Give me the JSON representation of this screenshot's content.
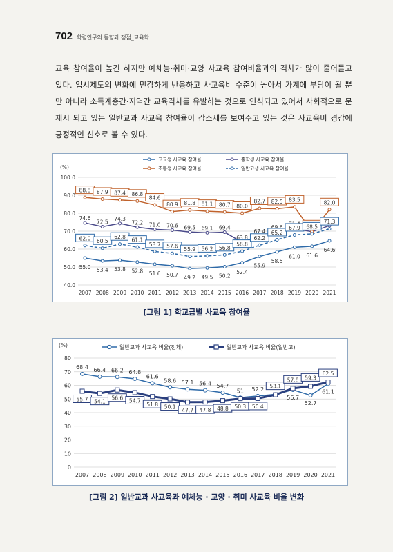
{
  "header": {
    "page_number": "702",
    "running_title": "학령인구의 동향과 쟁점_교육학"
  },
  "body_text": "교육 참여율이 높긴 하지만 예체능·취미·교양 사교육 참여비율과의 격차가 많이 줄어들고 있다. 입시제도의 변화에 민감하게 반응하고 사교육비 수준이 높아서 가계에 부담이 될 뿐만 아니라 소득계층간·지역간 교육격차를 유발하는 것으로 인식되고 있어서 사회적으로 문제시 되고 있는 일반교과 사교육 참여율이 감소세를 보여주고 있는 것은 사교육비 경감에 긍정적인 신호로 볼 수 있다.",
  "captions": {
    "fig1": "[그림 1] 학교급별 사교육 참여율",
    "fig2": "[그림 2] 일반교과 사교육과 예체능 · 교양 · 취미 사교육 비율 변화"
  },
  "chart_data": [
    {
      "type": "line",
      "ylabel": "(%)",
      "ylim": [
        40,
        100
      ],
      "yticks": [
        "100.0",
        "90.0",
        "80.0",
        "70.0",
        "60.0",
        "50.0",
        "40.0"
      ],
      "grid": true,
      "legend": "top",
      "categories": [
        "2007",
        "2008",
        "2009",
        "2010",
        "2011",
        "2012",
        "2013",
        "2014",
        "2015",
        "2016",
        "2017",
        "2018",
        "2019",
        "2020",
        "2021"
      ],
      "series": [
        {
          "name": "고교생 사교육 참여율",
          "color": "#2e6aa8",
          "style": "solid",
          "boxed": false,
          "values": [
            55.0,
            53.4,
            53.8,
            52.8,
            51.6,
            50.7,
            49.2,
            49.5,
            50.2,
            52.4,
            55.9,
            58.5,
            61.0,
            61.6,
            64.6
          ]
        },
        {
          "name": "중학생 사교육 참여율",
          "color": "#4a4a8a",
          "style": "solid",
          "boxed": false,
          "values": [
            74.6,
            72.5,
            74.3,
            72.2,
            71.0,
            70.6,
            69.5,
            69.1,
            69.4,
            63.8,
            67.4,
            69.6,
            71.4,
            69.7,
            73.1
          ]
        },
        {
          "name": "초등생 사교육 참여율",
          "color": "#c0622c",
          "style": "solid",
          "boxed": true,
          "values": [
            88.8,
            87.9,
            87.4,
            86.8,
            84.6,
            80.9,
            81.8,
            81.1,
            80.7,
            80.0,
            82.7,
            82.5,
            83.5,
            69.7,
            82.0
          ]
        },
        {
          "name": "일반고생 사교육 참여율",
          "color": "#2e6aa8",
          "style": "dashed",
          "boxed": true,
          "values": [
            62.0,
            60.5,
            62.8,
            61.1,
            58.7,
            57.6,
            55.9,
            56.2,
            56.8,
            58.8,
            62.2,
            65.2,
            67.9,
            68.5,
            71.3
          ]
        }
      ]
    },
    {
      "type": "line",
      "ylabel": "(%)",
      "ylim": [
        0,
        80
      ],
      "yticks": [
        "80",
        "70",
        "60",
        "50",
        "40",
        "30",
        "20",
        "10",
        "0"
      ],
      "grid": true,
      "legend": "top",
      "categories": [
        "2007",
        "2008",
        "2009",
        "2010",
        "2011",
        "2012",
        "2013",
        "2014",
        "2015",
        "2016",
        "2017",
        "2018",
        "2019",
        "2020",
        "2021"
      ],
      "series": [
        {
          "name": "일반교과 사교육 비율(전체)",
          "color": "#2e6aa8",
          "marker": "circle",
          "boxed": false,
          "values": [
            68.4,
            66.4,
            66.2,
            64.8,
            61.6,
            58.6,
            57.1,
            56.4,
            54.7,
            51,
            52.2,
            53.4,
            56.7,
            52.7,
            61.1
          ]
        },
        {
          "name": "일반교과 사교육 비율(일반고)",
          "color": "#2a3f7e",
          "marker": "square",
          "boxed": true,
          "values": [
            55.7,
            54.1,
            56.6,
            54.7,
            51.8,
            50.1,
            47.7,
            47.8,
            48.8,
            50.3,
            50.4,
            53.1,
            57.8,
            59.3,
            62.5
          ]
        }
      ]
    }
  ]
}
